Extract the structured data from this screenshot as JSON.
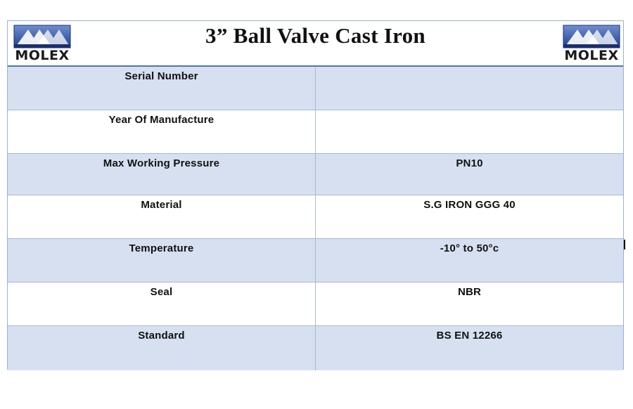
{
  "header": {
    "title": "3” Ball Valve Cast Iron",
    "logo_left": {
      "text": "MOLEX",
      "icon": "molex-logo-icon"
    },
    "logo_right": {
      "text": "MOLEX",
      "icon": "molex-logo-icon"
    }
  },
  "colors": {
    "shaded_row": "#d6e0f0",
    "header_rule": "#4f73b5",
    "logo_blue": "#2d4f9e"
  },
  "rows": [
    {
      "label": "Serial Number",
      "value": ""
    },
    {
      "label": "Year Of Manufacture",
      "value": ""
    },
    {
      "label": "Max Working Pressure",
      "value": "PN10"
    },
    {
      "label": "Material",
      "value": "S.G IRON GGG 40"
    },
    {
      "label": "Temperature",
      "value": "-10° to 50°c"
    },
    {
      "label": "Seal",
      "value": "NBR"
    },
    {
      "label": "Standard",
      "value": "BS EN 12266"
    }
  ]
}
